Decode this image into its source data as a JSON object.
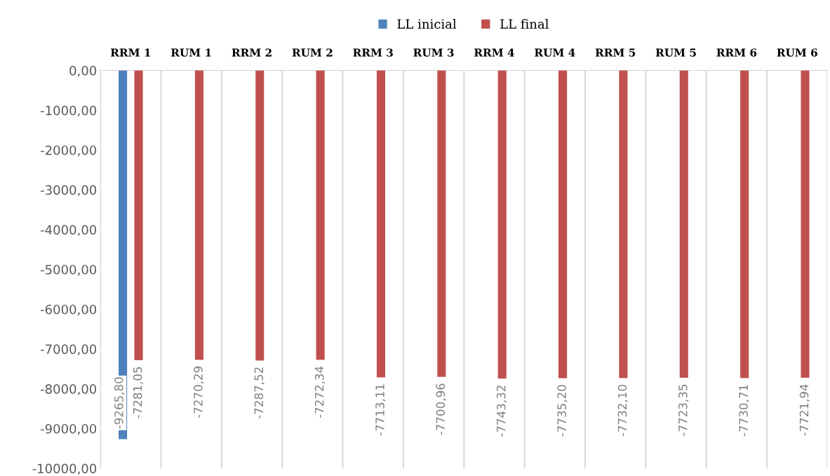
{
  "chart_data": {
    "type": "bar",
    "categories": [
      "RRM 1",
      "RUM 1",
      "RRM 2",
      "RUM 2",
      "RRM 3",
      "RUM 3",
      "RRM 4",
      "RUM 4",
      "RRM 5",
      "RUM 5",
      "RRM 6",
      "RUM 6"
    ],
    "series": [
      {
        "name": "LL inicial",
        "color": "#4f81bd",
        "values": [
          -9265.8,
          null,
          null,
          null,
          null,
          null,
          null,
          null,
          null,
          null,
          null,
          null
        ],
        "value_labels": [
          "-9265,80",
          null,
          null,
          null,
          null,
          null,
          null,
          null,
          null,
          null,
          null,
          null
        ]
      },
      {
        "name": "LL final",
        "color": "#c0504d",
        "values": [
          -7281.05,
          -7270.29,
          -7287.52,
          -7272.34,
          -7713.11,
          -7700.96,
          -7743.32,
          -7735.2,
          -7732.1,
          -7723.35,
          -7730.71,
          -7721.94
        ],
        "value_labels": [
          "-7281,05",
          "-7270,29",
          "-7287,52",
          "-7272,34",
          "-7713,11",
          "-7700,96",
          "-7743,32",
          "-7735,20",
          "-7732,10",
          "-7723,35",
          "-7730,71",
          "-7721,94"
        ]
      }
    ],
    "ylim": [
      -10000,
      0
    ],
    "yticks": [
      {
        "value": 0,
        "label": "0,00"
      },
      {
        "value": -1000,
        "label": "-1000,00"
      },
      {
        "value": -2000,
        "label": "-2000,00"
      },
      {
        "value": -3000,
        "label": "-3000,00"
      },
      {
        "value": -4000,
        "label": "-4000,00"
      },
      {
        "value": -5000,
        "label": "-5000,00"
      },
      {
        "value": -6000,
        "label": "-6000,00"
      },
      {
        "value": -7000,
        "label": "-7000,00"
      },
      {
        "value": -8000,
        "label": "-8000,00"
      },
      {
        "value": -9000,
        "label": "-9000,00"
      },
      {
        "value": -10000,
        "label": "-10000,00"
      }
    ],
    "grid": "x",
    "legend": "top"
  }
}
